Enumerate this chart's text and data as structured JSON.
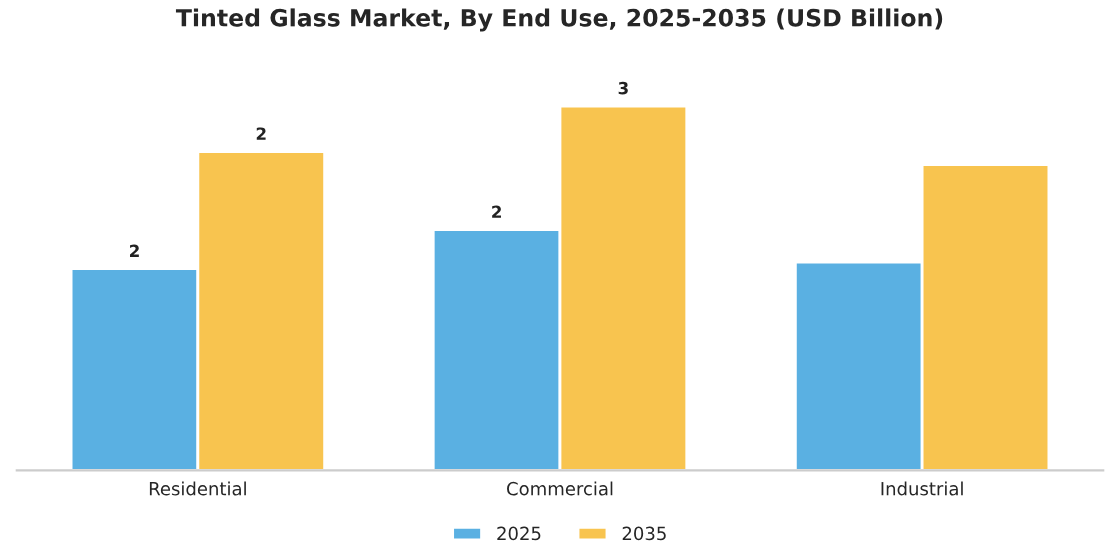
{
  "chart_data": {
    "type": "bar",
    "title": "Tinted Glass Market, By End Use, 2025-2035 (USD Billion)",
    "categories": [
      "Residential",
      "Commercial",
      "Industrial"
    ],
    "series": [
      {
        "name": "2025",
        "color": "#5ab0e2",
        "values": [
          1.55,
          1.85,
          1.6
        ],
        "value_labels": [
          "2",
          "2",
          null
        ]
      },
      {
        "name": "2035",
        "color": "#f8c44f",
        "values": [
          2.45,
          2.8,
          2.35
        ],
        "value_labels": [
          "2",
          "3",
          null
        ]
      }
    ],
    "grid": false,
    "legend": "bottom"
  }
}
